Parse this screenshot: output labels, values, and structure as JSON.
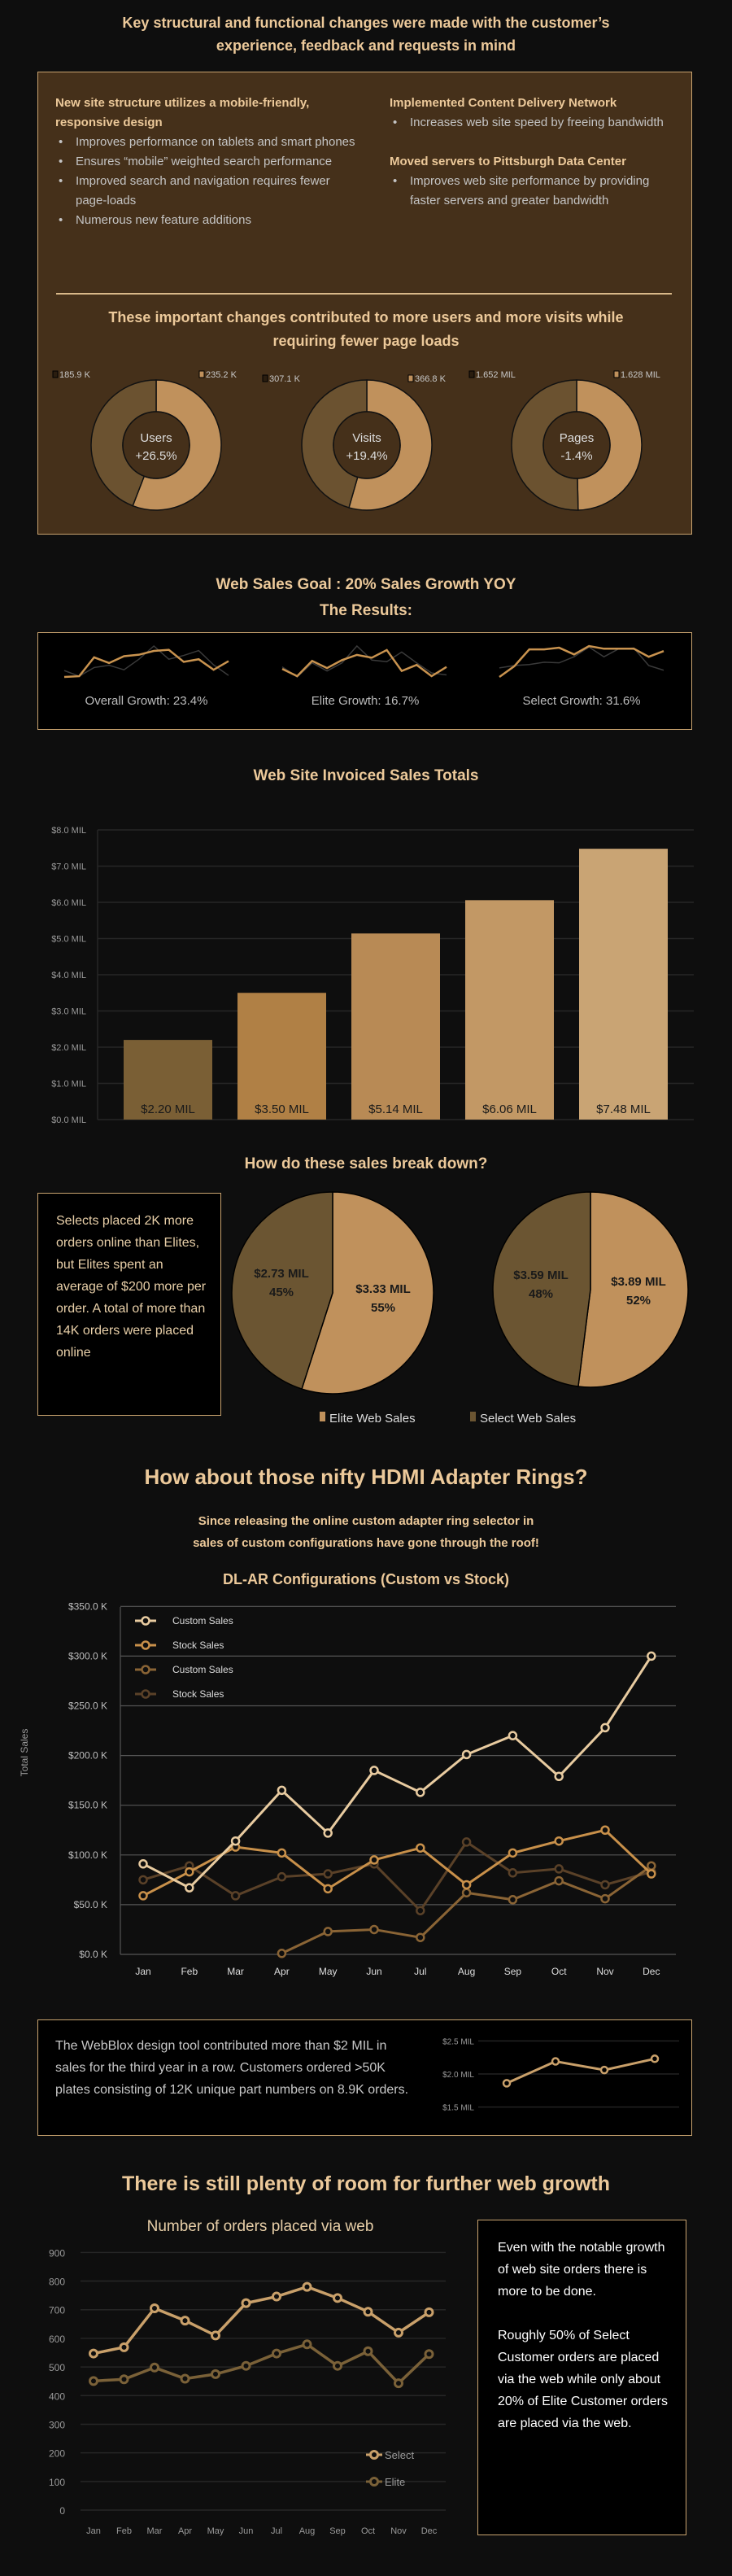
{
  "header": {
    "title_line1": "Key structural and functional changes were made with the customer’s",
    "title_line2": "experience, feedback and requests in mind"
  },
  "changes": {
    "left": {
      "heading": "New site structure utilizes a mobile-friendly, responsive design",
      "bullets": [
        "Improves performance on tablets and smart phones",
        "Ensures “mobile” weighted search performance",
        "Improved search and navigation requires fewer page-loads",
        "Numerous new feature additions"
      ]
    },
    "right": [
      {
        "heading": "Implemented Content Delivery Network",
        "bullets": [
          "Increases web site speed by freeing bandwidth"
        ]
      },
      {
        "heading": "Moved servers to Pittsburgh Data Center",
        "bullets": [
          "Improves web site performance by providing faster servers and greater bandwidth"
        ]
      }
    ],
    "summary_line1": "These important changes contributed to more users and more visits while",
    "summary_line2": "requiring fewer page loads"
  },
  "sales_goal": {
    "line1": "Web Sales Goal : 20% Sales Growth YOY",
    "line2": "The Results:"
  },
  "breakdown": {
    "heading": "How do these sales break down?",
    "note": "Selects placed 2K more orders online than Elites, but Elites spent an average of $200 more per order. A total of more than 14K orders were placed online"
  },
  "hdmi": {
    "title": "How about those nifty HDMI Adapter Rings?",
    "subtitle_line1": "Since releasing the online custom adapter ring selector in",
    "subtitle_line2": "sales of custom configurations have gone through the roof!"
  },
  "webblox": {
    "text": "The WebBlox design tool contributed more than $2 MIL in sales for the third year in a row. Customers ordered >50K plates consisting of 12K unique part numbers on 8.9K orders."
  },
  "growth": {
    "title": "There is still plenty of room for further web growth",
    "note_p1": "Even with the notable growth of web site orders there is more to be done.",
    "note_p2": "Roughly 50% of Select Customer orders are placed via the web while only about 20% of Elite Customer orders are placed via the web."
  },
  "colors": {
    "background": "#0e0e0e",
    "panel": "#45301a",
    "border": "#c9a36f",
    "heading": "#ecc99a",
    "light_tan": "#c0915c",
    "dark_brown": "#6b5230"
  },
  "chart_data": [
    {
      "id": "donuts",
      "type": "pie",
      "variant": "donut",
      "items": [
        {
          "label": "Users",
          "change": "+26.5%",
          "previous": 185.9,
          "current": 235.2,
          "previous_label": "185.9 K",
          "current_label": "235.2 K"
        },
        {
          "label": "Visits",
          "change": "+19.4%",
          "previous": 307.1,
          "current": 366.8,
          "previous_label": "307.1 K",
          "current_label": "366.8 K"
        },
        {
          "label": "Pages",
          "change": "-1.4%",
          "previous": 1652,
          "current": 1628,
          "previous_label": "1.652 MIL",
          "current_label": "1.628 MIL"
        }
      ]
    },
    {
      "id": "sparklines",
      "type": "line",
      "items": [
        {
          "label": "Overall Growth: 23.4%",
          "series": [
            {
              "color": "#c9934f",
              "values": [
                63,
                65,
                115,
                100,
                118,
                122,
                132,
                135,
                103,
                110,
                82,
                105
              ]
            },
            {
              "color": "#3a3a3a",
              "values": [
                80,
                65,
                88,
                94,
                82,
                110,
                145,
                110,
                120,
                133,
                95,
                67
              ]
            }
          ]
        },
        {
          "label": "Elite Growth: 16.7%",
          "series": [
            {
              "color": "#c9934f",
              "values": [
                60,
                42,
                80,
                62,
                82,
                95,
                88,
                107,
                55,
                70,
                42,
                65
              ]
            },
            {
              "color": "#3a3a3a",
              "values": [
                65,
                40,
                75,
                55,
                75,
                117,
                82,
                78,
                102,
                75,
                50,
                45
              ]
            }
          ]
        },
        {
          "label": "Select Growth: 31.6%",
          "series": [
            {
              "color": "#c9934f",
              "values": [
                28,
                60,
                110,
                110,
                115,
                95,
                120,
                112,
                112,
                112,
                88,
                105
              ]
            },
            {
              "color": "#3a3a3a",
              "values": [
                55,
                62,
                65,
                72,
                70,
                88,
                117,
                88,
                112,
                114,
                62,
                48
              ]
            }
          ]
        }
      ]
    },
    {
      "id": "invoiced",
      "type": "bar",
      "title": "Web Site Invoiced Sales Totals",
      "values": [
        2.2,
        3.5,
        5.14,
        6.06,
        7.48
      ],
      "data_labels": [
        "$2.20 MIL",
        "$3.50 MIL",
        "$5.14 MIL",
        "$6.06 MIL",
        "$7.48 MIL"
      ],
      "colors": [
        "#7a5f35",
        "#b08045",
        "#b88a55",
        "#c29865",
        "#c9a474"
      ],
      "ylim": [
        0,
        8
      ],
      "yticks": [
        "$0.0 MIL",
        "$1.0 MIL",
        "$2.0 MIL",
        "$3.0 MIL",
        "$4.0 MIL",
        "$5.0 MIL",
        "$6.0 MIL",
        "$7.0 MIL",
        "$8.0 MIL"
      ],
      "grid": true
    },
    {
      "id": "breakdown",
      "type": "pie",
      "legend": [
        "Elite Web Sales",
        "Select Web Sales"
      ],
      "legend_position": "bottom",
      "pies": [
        {
          "slices": [
            {
              "name": "Elite Web Sales",
              "value": 3.33,
              "label": "$3.33 MIL",
              "pct": "55%",
              "color": "#c0915c"
            },
            {
              "name": "Select Web Sales",
              "value": 2.73,
              "label": "$2.73 MIL",
              "pct": "45%",
              "color": "#6b5532"
            }
          ]
        },
        {
          "slices": [
            {
              "name": "Elite Web Sales",
              "value": 3.89,
              "label": "$3.89 MIL",
              "pct": "52%",
              "color": "#c0915c"
            },
            {
              "name": "Select Web Sales",
              "value": 3.59,
              "label": "$3.59 MIL",
              "pct": "48%",
              "color": "#6b5532"
            }
          ]
        }
      ]
    },
    {
      "id": "dlar",
      "type": "line",
      "title": "DL-AR Configurations (Custom vs Stock)",
      "ylabel": "Total Sales",
      "categories": [
        "Jan",
        "Feb",
        "Mar",
        "Apr",
        "May",
        "Jun",
        "Jul",
        "Aug",
        "Sep",
        "Oct",
        "Nov",
        "Dec"
      ],
      "ylim": [
        0,
        350
      ],
      "yticks": [
        "$0.0 K",
        "$50.0 K",
        "$100.0 K",
        "$150.0 K",
        "$200.0 K",
        "$250.0 K",
        "$300.0 K",
        "$350.0 K"
      ],
      "legend_position": "top-left",
      "grid": true,
      "series": [
        {
          "name": "Custom Sales",
          "color": "#e8cba0",
          "values": [
            91,
            67,
            114,
            165,
            122,
            185,
            163,
            201,
            220,
            179,
            228,
            300
          ]
        },
        {
          "name": "Stock Sales",
          "color": "#c8904a",
          "values": [
            59,
            83,
            108,
            102,
            66,
            95,
            107,
            70,
            102,
            114,
            125,
            81
          ]
        },
        {
          "name": "Custom Sales",
          "color": "#8a6435",
          "values": [
            null,
            null,
            null,
            1,
            23,
            25,
            17,
            62,
            55,
            74,
            56,
            89
          ]
        },
        {
          "name": "Stock Sales",
          "color": "#5a4128",
          "values": [
            75,
            89,
            59,
            78,
            81,
            91,
            44,
            113,
            82,
            86,
            70,
            83
          ]
        }
      ]
    },
    {
      "id": "webblox",
      "type": "line",
      "ylim": [
        1.5,
        2.5
      ],
      "yticks": [
        "$1.5 MIL",
        "$2.0 MIL",
        "$2.5 MIL"
      ],
      "series": [
        {
          "color": "#c9a06a",
          "values": [
            1.86,
            2.19,
            2.06,
            2.23
          ]
        }
      ]
    },
    {
      "id": "orders",
      "type": "line",
      "title": "Number of orders placed via web",
      "categories": [
        "Jan",
        "Feb",
        "Mar",
        "Apr",
        "May",
        "Jun",
        "Jul",
        "Aug",
        "Sep",
        "Oct",
        "Nov",
        "Dec"
      ],
      "ylim": [
        0,
        900
      ],
      "yticks": [
        "0",
        "100",
        "200",
        "300",
        "400",
        "500",
        "600",
        "700",
        "800",
        "900"
      ],
      "legend_position": "bottom-right",
      "grid": true,
      "series": [
        {
          "name": "Select",
          "color": "#c9a06a",
          "values": [
            547,
            569,
            705,
            662,
            610,
            723,
            746,
            780,
            741,
            693,
            620,
            691
          ]
        },
        {
          "name": "Elite",
          "color": "#7a6138",
          "values": [
            451,
            457,
            498,
            459,
            475,
            504,
            547,
            579,
            504,
            555,
            443,
            545
          ]
        }
      ]
    }
  ]
}
